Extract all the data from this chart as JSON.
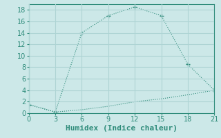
{
  "xlabel": "Humidex (Indice chaleur)",
  "line1_x": [
    0,
    3,
    6,
    9,
    12,
    15,
    18,
    21
  ],
  "line1_y": [
    1.5,
    0.2,
    14,
    17,
    18.5,
    17,
    8.5,
    4
  ],
  "line2_x": [
    0,
    3,
    6,
    9,
    12,
    15,
    18,
    21
  ],
  "line2_y": [
    1.5,
    0.2,
    0.6,
    1.2,
    2.0,
    2.5,
    3.2,
    4.0
  ],
  "line_color": "#2e8b7a",
  "bg_color": "#cce8e8",
  "grid_color": "#aed4d4",
  "xlim": [
    0,
    21
  ],
  "ylim": [
    0,
    19
  ],
  "xticks": [
    0,
    3,
    6,
    9,
    12,
    15,
    18,
    21
  ],
  "yticks": [
    0,
    2,
    4,
    6,
    8,
    10,
    12,
    14,
    16,
    18
  ],
  "tick_fontsize": 7,
  "xlabel_fontsize": 8
}
